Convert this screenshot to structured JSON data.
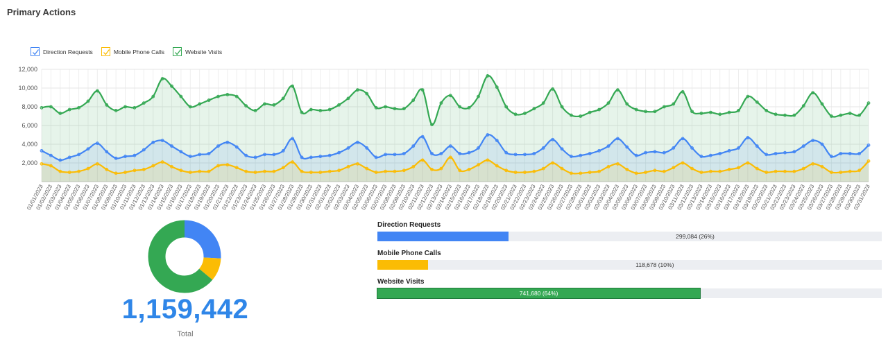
{
  "page": {
    "title": "Primary Actions"
  },
  "legend": [
    {
      "label": "Direction Requests",
      "color": "#4285f4"
    },
    {
      "label": "Mobile Phone Calls",
      "color": "#fbbc04"
    },
    {
      "label": "Website Visits",
      "color": "#34a853"
    }
  ],
  "chart_data": [
    {
      "type": "area",
      "title": "",
      "ylim": [
        0,
        12000
      ],
      "yticks": [
        "2,000",
        "4,000",
        "6,000",
        "8,000",
        "10,000",
        "12,000"
      ],
      "ytick_values": [
        2000,
        4000,
        6000,
        8000,
        10000,
        12000
      ],
      "grid": true,
      "legend": "top-left",
      "categories": [
        "01/01/2023",
        "01/02/2023",
        "01/03/2023",
        "01/04/2023",
        "01/05/2023",
        "01/06/2023",
        "01/07/2023",
        "01/08/2023",
        "01/09/2023",
        "01/10/2023",
        "01/11/2023",
        "01/12/2023",
        "01/13/2023",
        "01/14/2023",
        "01/15/2023",
        "01/16/2023",
        "01/17/2023",
        "01/18/2023",
        "01/19/2023",
        "01/20/2023",
        "01/21/2023",
        "01/22/2023",
        "01/23/2023",
        "01/24/2023",
        "01/25/2023",
        "01/26/2023",
        "01/27/2023",
        "01/28/2023",
        "01/29/2023",
        "01/30/2023",
        "01/31/2023",
        "02/01/2023",
        "02/02/2023",
        "02/03/2023",
        "02/04/2023",
        "02/05/2023",
        "02/06/2023",
        "02/07/2023",
        "02/08/2023",
        "02/09/2023",
        "02/10/2023",
        "02/11/2023",
        "02/12/2023",
        "02/13/2023",
        "02/14/2023",
        "02/15/2023",
        "02/16/2023",
        "02/17/2023",
        "02/18/2023",
        "02/19/2023",
        "02/20/2023",
        "02/21/2023",
        "02/22/2023",
        "02/23/2023",
        "02/24/2023",
        "02/25/2023",
        "02/26/2023",
        "02/27/2023",
        "02/28/2023",
        "03/01/2023",
        "03/02/2023",
        "03/03/2023",
        "03/04/2023",
        "03/05/2023",
        "03/06/2023",
        "03/07/2023",
        "03/08/2023",
        "03/09/2023",
        "03/10/2023",
        "03/11/2023",
        "03/12/2023",
        "03/13/2023",
        "03/14/2023",
        "03/15/2023",
        "03/16/2023",
        "03/17/2023",
        "03/18/2023",
        "03/19/2023",
        "03/20/2023",
        "03/21/2023",
        "03/22/2023",
        "03/23/2023",
        "03/24/2023",
        "03/25/2023",
        "03/26/2023",
        "03/27/2023",
        "03/28/2023",
        "03/29/2023",
        "03/30/2023",
        "03/31/2023"
      ],
      "series": [
        {
          "name": "Website Visits",
          "color": "#34a853",
          "values": [
            7900,
            8000,
            7300,
            7700,
            7900,
            8600,
            9700,
            8200,
            7600,
            8000,
            7900,
            8400,
            9100,
            11000,
            10200,
            9100,
            8000,
            8300,
            8700,
            9100,
            9300,
            9100,
            8100,
            7600,
            8300,
            8200,
            8900,
            10200,
            7400,
            7700,
            7600,
            7700,
            8200,
            8900,
            9800,
            9400,
            7900,
            8000,
            7800,
            7800,
            8700,
            9800,
            6100,
            8400,
            9200,
            8000,
            7900,
            9100,
            11300,
            10100,
            8000,
            7200,
            7300,
            7800,
            8400,
            9900,
            8000,
            7100,
            7000,
            7400,
            7700,
            8400,
            9800,
            8300,
            7700,
            7500,
            7500,
            8000,
            8300,
            9600,
            7500,
            7300,
            7400,
            7200,
            7400,
            7600,
            9100,
            8500,
            7600,
            7200,
            7100,
            7100,
            8100,
            9500,
            8300,
            7000,
            7100,
            7300,
            7100,
            8400
          ]
        },
        {
          "name": "Direction Requests",
          "color": "#4285f4",
          "values": [
            3300,
            2800,
            2300,
            2600,
            2900,
            3500,
            4100,
            3200,
            2500,
            2700,
            2800,
            3400,
            4200,
            4400,
            3800,
            3200,
            2700,
            2900,
            3000,
            3800,
            4200,
            3700,
            2800,
            2600,
            2900,
            2900,
            3300,
            4600,
            2600,
            2600,
            2700,
            2800,
            3100,
            3600,
            4200,
            3600,
            2600,
            2900,
            2900,
            3000,
            3800,
            4800,
            3000,
            3000,
            3800,
            3000,
            3100,
            3600,
            5000,
            4400,
            3100,
            2900,
            2900,
            3000,
            3600,
            4500,
            3500,
            2700,
            2800,
            3000,
            3300,
            3800,
            4600,
            3700,
            2800,
            3100,
            3200,
            3100,
            3600,
            4600,
            3600,
            2700,
            2800,
            3000,
            3300,
            3600,
            4700,
            3800,
            2900,
            3000,
            3100,
            3200,
            3800,
            4400,
            4000,
            2700,
            3000,
            3000,
            3000,
            3900
          ]
        },
        {
          "name": "Mobile Phone Calls",
          "color": "#fbbc04",
          "values": [
            1900,
            1700,
            1100,
            1000,
            1100,
            1400,
            1900,
            1300,
            900,
            1000,
            1200,
            1300,
            1700,
            2100,
            1600,
            1200,
            1000,
            1100,
            1100,
            1700,
            1800,
            1500,
            1100,
            1000,
            1100,
            1100,
            1500,
            2100,
            1100,
            1000,
            1000,
            1100,
            1200,
            1600,
            1900,
            1400,
            1000,
            1100,
            1100,
            1200,
            1600,
            2300,
            1300,
            1400,
            2600,
            1200,
            1300,
            1800,
            2300,
            1700,
            1200,
            1000,
            1000,
            1100,
            1400,
            2000,
            1400,
            900,
            900,
            1000,
            1100,
            1600,
            1900,
            1300,
            900,
            1000,
            1200,
            1100,
            1500,
            2000,
            1400,
            1000,
            1100,
            1100,
            1300,
            1500,
            2000,
            1400,
            1000,
            1100,
            1100,
            1100,
            1400,
            1900,
            1600,
            1000,
            1000,
            1100,
            1200,
            2200
          ]
        }
      ]
    },
    {
      "type": "pie",
      "title": "",
      "legend": "none",
      "categories": [
        "Direction Requests",
        "Mobile Phone Calls",
        "Website Visits"
      ],
      "values": [
        299084,
        118678,
        741680
      ],
      "colors": [
        "#4285f4",
        "#fbbc04",
        "#34a853"
      ]
    },
    {
      "type": "bar",
      "orientation": "horizontal",
      "title": "",
      "categories": [
        "Direction Requests",
        "Mobile Phone Calls",
        "Website Visits"
      ],
      "values": [
        299084,
        118678,
        741680
      ],
      "fractions": [
        0.26,
        0.1,
        0.64
      ],
      "labels": [
        "299,084 (26%)",
        "118,678 (10%)",
        "741,680 (64%)"
      ],
      "colors": [
        "#4285f4",
        "#fbbc04",
        "#34a853"
      ]
    }
  ],
  "total": {
    "value": "1,159,442",
    "label": "Total"
  }
}
